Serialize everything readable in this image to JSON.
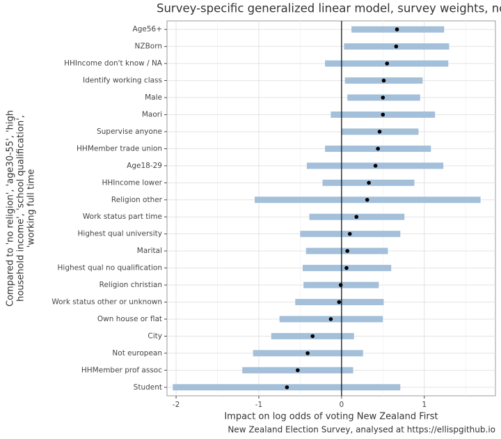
{
  "chart_data": {
    "type": "interval",
    "title": "Survey-specific generalized linear model, survey weights, no",
    "x_label": "Impact on log odds of voting New Zealand First",
    "y_label": [
      "Compared to 'no religion', 'age30-55', 'high",
      "household income', 'school qualification',",
      "'working full time"
    ],
    "caption": "New Zealand Election Survey, analysed at https://ellispgithub.io",
    "categories": [
      "Age56+",
      "NZBorn",
      "HHIncome don't know / NA",
      "Identify working class",
      "Male",
      "Maori",
      "Supervise anyone",
      "HHMember trade union",
      "Age18-29",
      "HHIncome lower",
      "Religion other",
      "Work status part time",
      "Highest qual university",
      "Marital",
      "Highest qual no qualification",
      "Religion christian",
      "Work status other or unknown",
      "Own house or flat",
      "City",
      "Not european",
      "HHMember prof assoc",
      "Student"
    ],
    "values": [
      0.67,
      0.66,
      0.55,
      0.51,
      0.5,
      0.5,
      0.46,
      0.44,
      0.41,
      0.33,
      0.31,
      0.18,
      0.1,
      0.07,
      0.06,
      -0.01,
      -0.03,
      -0.13,
      -0.35,
      -0.41,
      -0.53,
      -0.66
    ],
    "lower": [
      0.12,
      0.03,
      -0.2,
      0.04,
      0.07,
      -0.13,
      0.0,
      -0.2,
      -0.42,
      -0.23,
      -1.05,
      -0.39,
      -0.5,
      -0.43,
      -0.47,
      -0.46,
      -0.56,
      -0.75,
      -0.85,
      -1.07,
      -1.2,
      -2.04
    ],
    "upper": [
      1.24,
      1.3,
      1.29,
      0.98,
      0.95,
      1.13,
      0.93,
      1.08,
      1.23,
      0.88,
      1.68,
      0.76,
      0.71,
      0.56,
      0.6,
      0.45,
      0.51,
      0.5,
      0.15,
      0.26,
      0.14,
      0.71
    ],
    "color": "#a3bfd9",
    "point_color": "#000000",
    "xlim": [
      -2.11,
      1.86
    ],
    "xticks": [
      -2,
      -1,
      0,
      1
    ],
    "x_minor_ticks": [
      -1.5,
      -0.5,
      0.5,
      1.5
    ],
    "vline": 0,
    "grid": true
  }
}
